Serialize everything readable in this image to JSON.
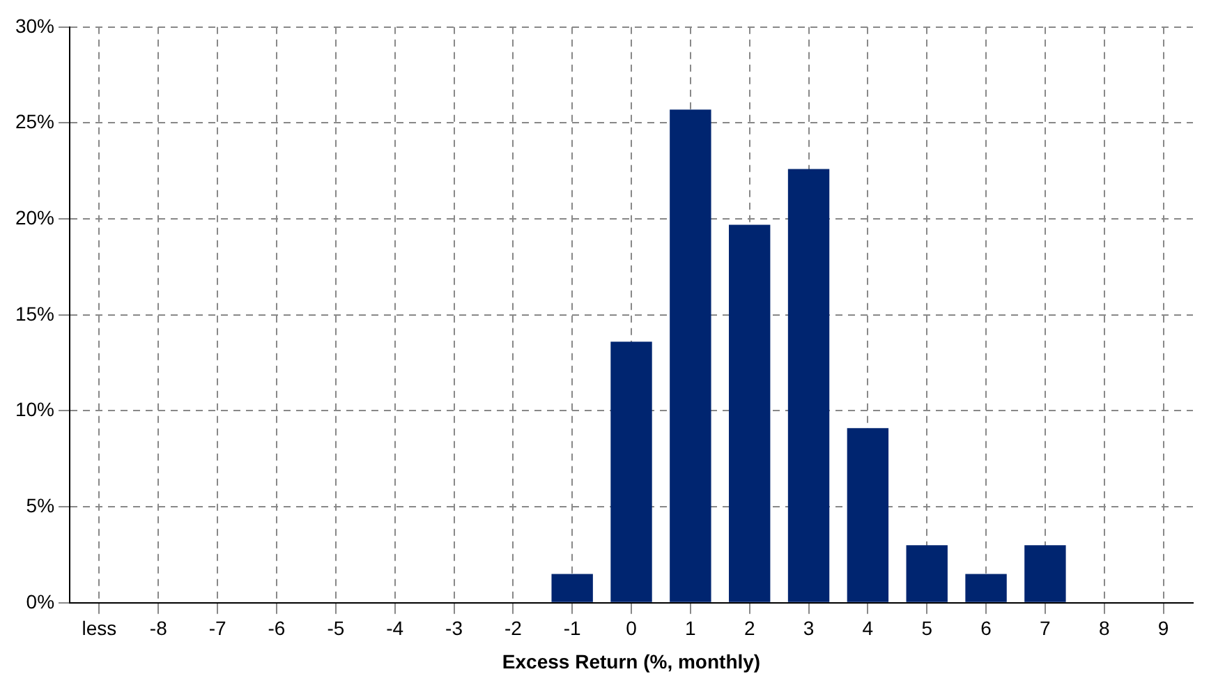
{
  "chart_data": {
    "type": "bar",
    "xlabel": "Excess Return (%, monthly)",
    "categories": [
      "less",
      "-8",
      "-7",
      "-6",
      "-5",
      "-4",
      "-3",
      "-2",
      "-1",
      "0",
      "1",
      "2",
      "3",
      "4",
      "5",
      "6",
      "7",
      "8",
      "9"
    ],
    "values": [
      0,
      0,
      0,
      0,
      0,
      0,
      0,
      0,
      1.5,
      13.6,
      25.7,
      19.7,
      22.6,
      9.1,
      3.0,
      1.5,
      3.0,
      0,
      0
    ],
    "color": "#002570",
    "ylim": [
      0,
      30
    ],
    "yticks": [
      {
        "value": 0,
        "label": "0%"
      },
      {
        "value": 5,
        "label": "5%"
      },
      {
        "value": 10,
        "label": "10%"
      },
      {
        "value": 15,
        "label": "15%"
      },
      {
        "value": 20,
        "label": "20%"
      },
      {
        "value": 25,
        "label": "25%"
      },
      {
        "value": 30,
        "label": "30%"
      }
    ],
    "grid": true,
    "legend": false
  }
}
